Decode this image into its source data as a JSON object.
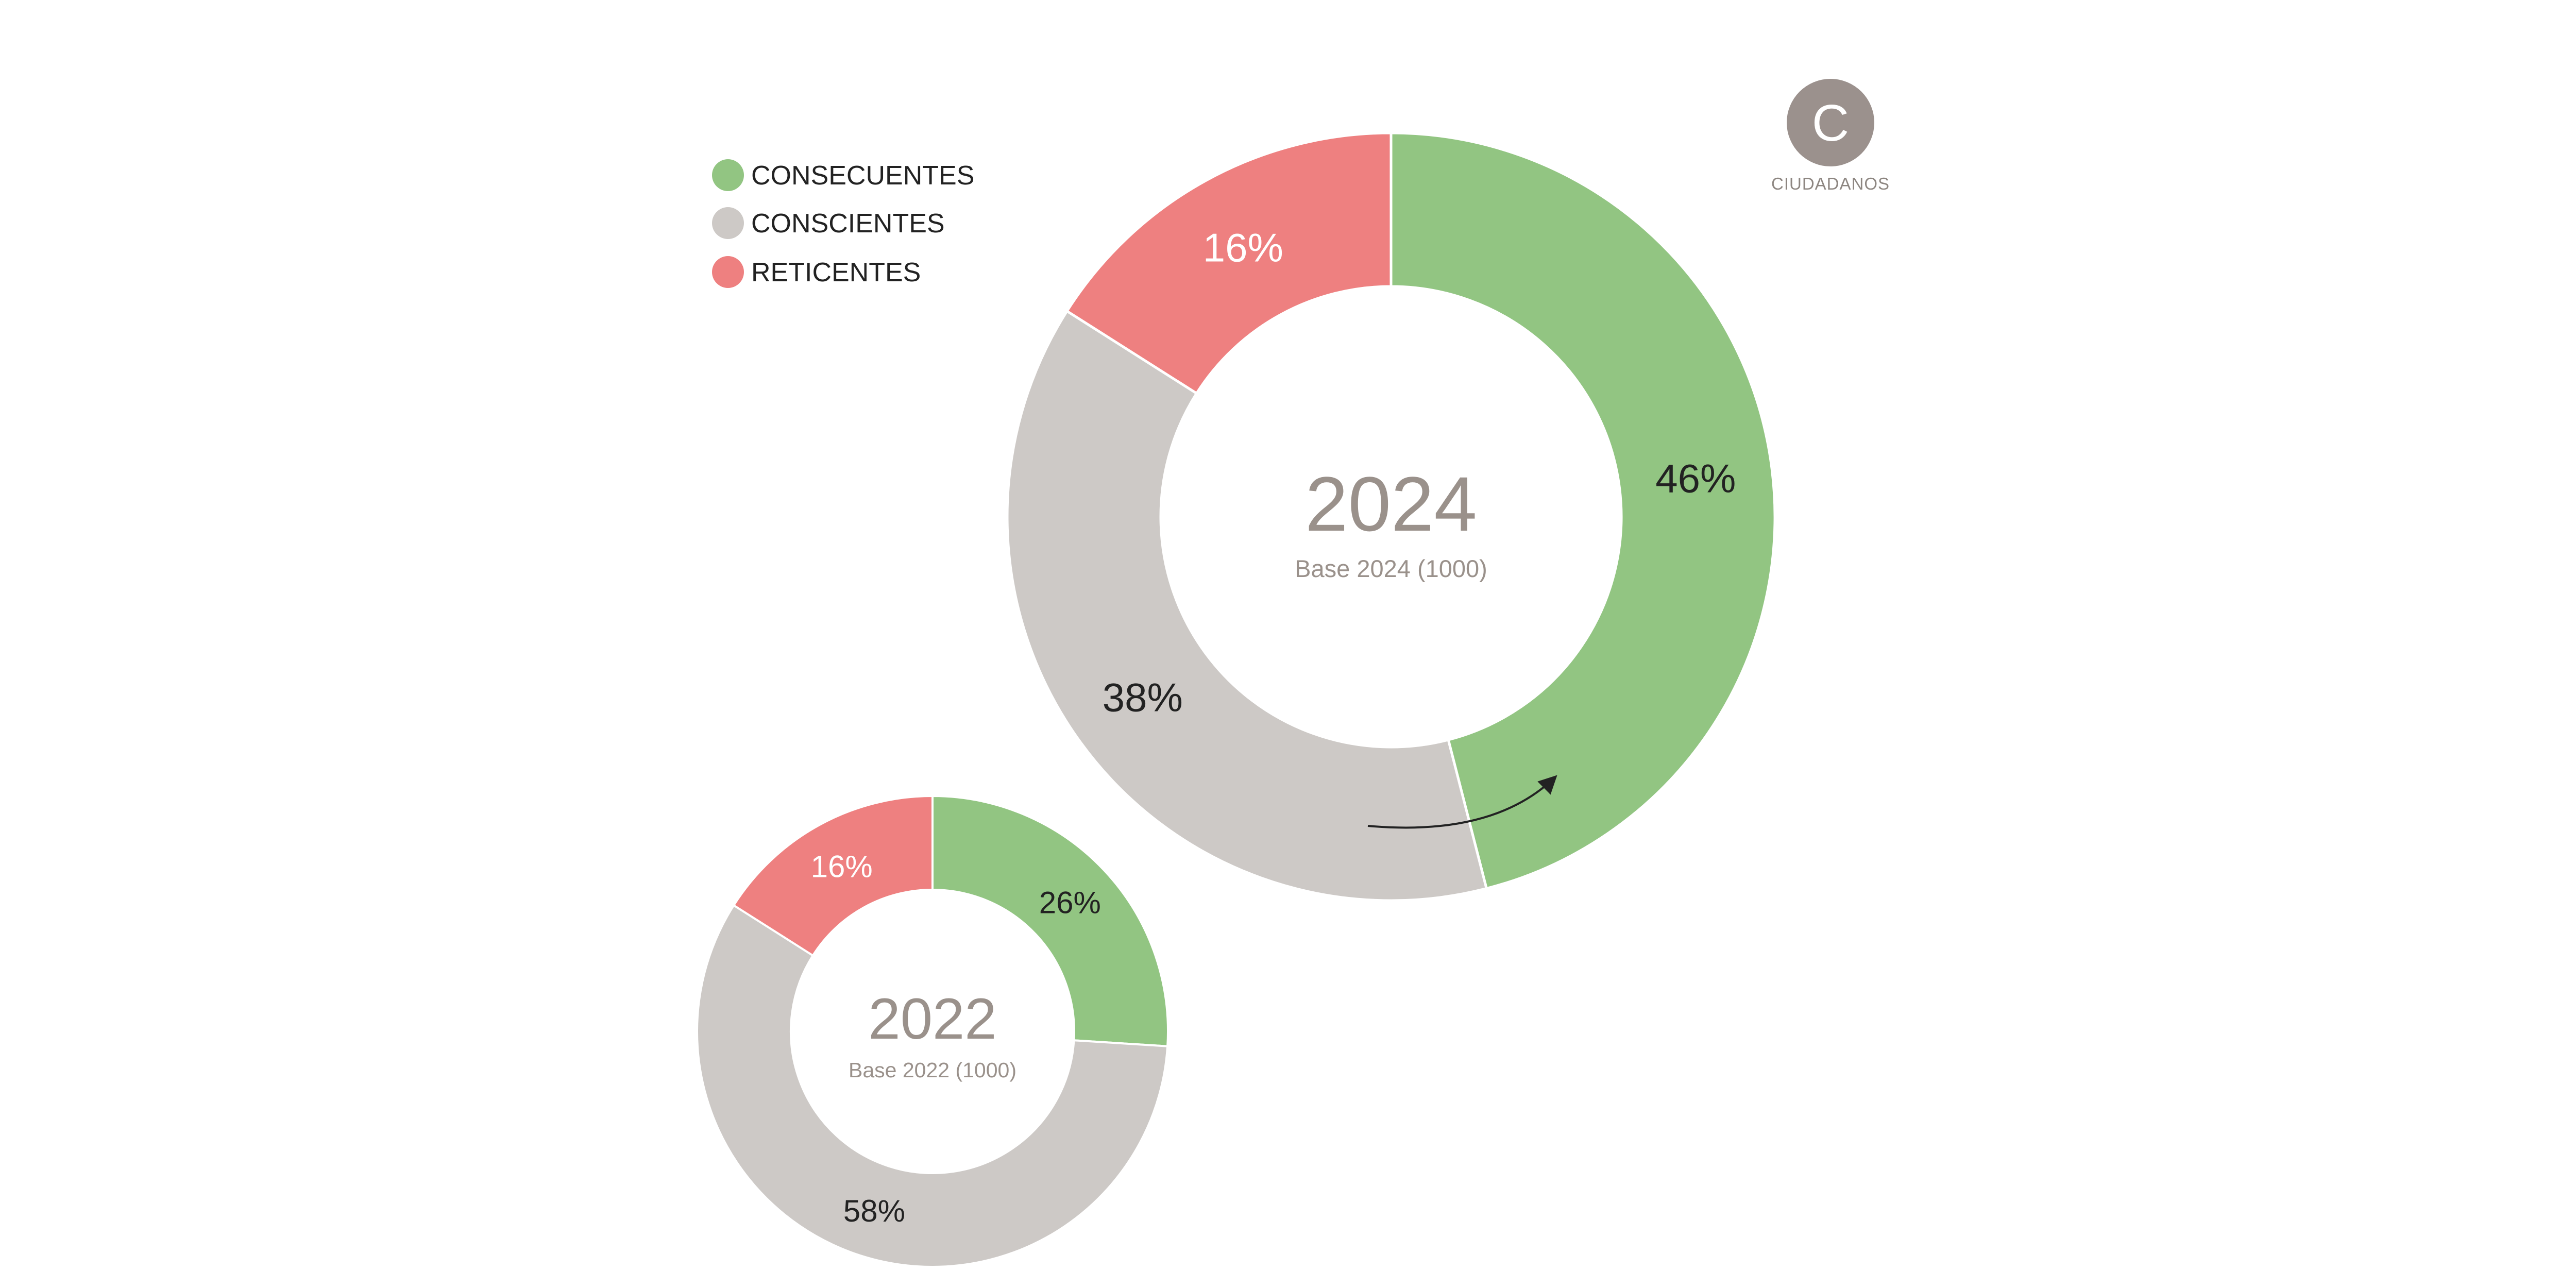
{
  "colors": {
    "consecuentes": "#92c582",
    "conscientes": "#cdc9c6",
    "reticentes": "#ee8080",
    "badge": "#9b918d",
    "center_text": "#9a918b",
    "label_dark": "#222222",
    "label_light": "#ffffff"
  },
  "legend": {
    "items": [
      {
        "label": "CONSECUENTES",
        "color": "#92c582"
      },
      {
        "label": "CONSCIENTES",
        "color": "#cdc9c6"
      },
      {
        "label": "RETICENTES",
        "color": "#ee8080"
      }
    ],
    "placement": "top-left"
  },
  "badge": {
    "letter": "C",
    "caption": "CIUDADANOS"
  },
  "chart_data": [
    {
      "type": "pie",
      "donut": true,
      "center_title": "2024",
      "center_subtitle": "Base 2024 (1000)",
      "categories": [
        "CONSECUENTES",
        "CONSCIENTES",
        "RETICENTES"
      ],
      "values": [
        46,
        38,
        16
      ],
      "labels": [
        "46%",
        "38%",
        "16%"
      ],
      "annotation": "curved arrow pointing clockwise from CONSCIENTES toward CONSECUENTES"
    },
    {
      "type": "pie",
      "donut": true,
      "center_title": "2022",
      "center_subtitle": "Base 2022 (1000)",
      "categories": [
        "CONSECUENTES",
        "CONSCIENTES",
        "RETICENTES"
      ],
      "values": [
        26,
        58,
        16
      ],
      "labels": [
        "26%",
        "58%",
        "16%"
      ]
    }
  ]
}
